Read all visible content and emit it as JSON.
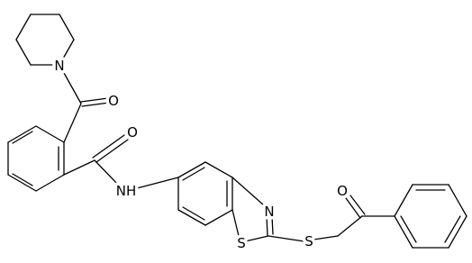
{
  "atoms": [
    "N",
    "O",
    "O",
    "NH",
    "N",
    "S",
    "S",
    "O"
  ]
}
